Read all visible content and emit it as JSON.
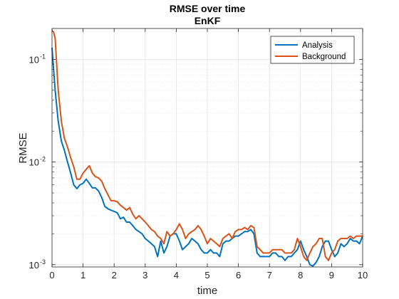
{
  "chart_data": {
    "type": "line",
    "title": "RMSE over time",
    "subtitle": "EnKF",
    "xlabel": "time",
    "ylabel": "RMSE",
    "xlim": [
      0,
      10
    ],
    "ylim": [
      0.00095,
      0.2
    ],
    "y_scale": "log",
    "grid": true,
    "minor_grid": true,
    "legend_position": "top-right",
    "x_ticks": [
      0,
      1,
      2,
      3,
      4,
      5,
      6,
      7,
      8,
      9,
      10
    ],
    "x_tick_labels": [
      "0",
      "1",
      "2",
      "3",
      "4",
      "5",
      "6",
      "7",
      "8",
      "9",
      "10"
    ],
    "y_ticks": [
      0.001,
      0.01,
      0.1
    ],
    "y_tick_base": "10",
    "y_tick_exponents": [
      "-3",
      "-2",
      "-1"
    ],
    "x": [
      0,
      0.05,
      0.1,
      0.2,
      0.3,
      0.4,
      0.5,
      0.6,
      0.7,
      0.8,
      0.9,
      1.0,
      1.1,
      1.2,
      1.3,
      1.4,
      1.5,
      1.6,
      1.7,
      1.8,
      1.9,
      2.0,
      2.1,
      2.2,
      2.3,
      2.4,
      2.5,
      2.6,
      2.7,
      2.8,
      2.9,
      3.0,
      3.1,
      3.2,
      3.3,
      3.4,
      3.5,
      3.6,
      3.7,
      3.8,
      3.9,
      4.0,
      4.1,
      4.2,
      4.3,
      4.4,
      4.5,
      4.6,
      4.7,
      4.8,
      4.9,
      5.0,
      5.1,
      5.2,
      5.3,
      5.4,
      5.5,
      5.6,
      5.7,
      5.8,
      5.9,
      6.0,
      6.1,
      6.2,
      6.3,
      6.4,
      6.5,
      6.6,
      6.7,
      6.8,
      6.9,
      7.0,
      7.1,
      7.2,
      7.3,
      7.4,
      7.5,
      7.6,
      7.7,
      7.8,
      7.9,
      8.0,
      8.1,
      8.2,
      8.3,
      8.4,
      8.5,
      8.6,
      8.7,
      8.8,
      8.9,
      9.0,
      9.1,
      9.2,
      9.3,
      9.4,
      9.5,
      9.6,
      9.7,
      9.8,
      9.9,
      10.0
    ],
    "series": [
      {
        "name": "Analysis",
        "color": "#0072BD",
        "values": [
          0.13,
          0.08,
          0.05,
          0.025,
          0.016,
          0.013,
          0.01,
          0.0078,
          0.006,
          0.0055,
          0.006,
          0.0062,
          0.0068,
          0.0062,
          0.0056,
          0.0056,
          0.0052,
          0.0045,
          0.0037,
          0.0035,
          0.0034,
          0.0033,
          0.0032,
          0.0028,
          0.0029,
          0.0026,
          0.0026,
          0.0024,
          0.0022,
          0.0021,
          0.002,
          0.0018,
          0.0017,
          0.0016,
          0.0015,
          0.0012,
          0.0017,
          0.0013,
          0.0015,
          0.0019,
          0.002,
          0.002,
          0.0017,
          0.0014,
          0.0015,
          0.0016,
          0.0018,
          0.0017,
          0.0016,
          0.0014,
          0.0013,
          0.0013,
          0.0014,
          0.0013,
          0.0013,
          0.0012,
          0.0016,
          0.0017,
          0.0017,
          0.0018,
          0.0019,
          0.0019,
          0.002,
          0.0021,
          0.0021,
          0.0022,
          0.002,
          0.0013,
          0.0012,
          0.0012,
          0.0012,
          0.0012,
          0.0013,
          0.0013,
          0.0012,
          0.0012,
          0.0011,
          0.0012,
          0.0012,
          0.0013,
          0.0014,
          0.0017,
          0.0014,
          0.0012,
          0.001,
          0.00097,
          0.00105,
          0.0012,
          0.0015,
          0.0017,
          0.0017,
          0.0014,
          0.0012,
          0.0013,
          0.0016,
          0.0015,
          0.0016,
          0.0018,
          0.0017,
          0.0017,
          0.0016,
          0.0019
        ]
      },
      {
        "name": "Background",
        "color": "#D95319",
        "values": [
          0.19,
          0.185,
          0.16,
          0.05,
          0.025,
          0.017,
          0.014,
          0.011,
          0.009,
          0.0068,
          0.0068,
          0.0078,
          0.0085,
          0.0092,
          0.0078,
          0.0072,
          0.007,
          0.0065,
          0.0055,
          0.0048,
          0.0042,
          0.0042,
          0.0041,
          0.0038,
          0.0036,
          0.0034,
          0.0036,
          0.0031,
          0.0028,
          0.003,
          0.0028,
          0.0026,
          0.0024,
          0.0022,
          0.0021,
          0.0019,
          0.0018,
          0.0016,
          0.0021,
          0.0019,
          0.002,
          0.0022,
          0.0025,
          0.0022,
          0.0018,
          0.002,
          0.0021,
          0.0022,
          0.0024,
          0.0022,
          0.0019,
          0.0016,
          0.0018,
          0.0017,
          0.0016,
          0.0015,
          0.0018,
          0.0019,
          0.002,
          0.0018,
          0.0021,
          0.0022,
          0.0022,
          0.0023,
          0.0022,
          0.0024,
          0.0023,
          0.0015,
          0.0014,
          0.0013,
          0.0013,
          0.0013,
          0.0014,
          0.0014,
          0.0014,
          0.0014,
          0.0013,
          0.0013,
          0.0013,
          0.0014,
          0.0018,
          0.0015,
          0.0012,
          0.0011,
          0.0013,
          0.0015,
          0.0016,
          0.0018,
          0.0018,
          0.0012,
          0.0011,
          0.0013,
          0.0014,
          0.0017,
          0.0018,
          0.0018,
          0.0018,
          0.0019,
          0.0018,
          0.0019,
          0.0019,
          0.0019
        ]
      }
    ]
  }
}
